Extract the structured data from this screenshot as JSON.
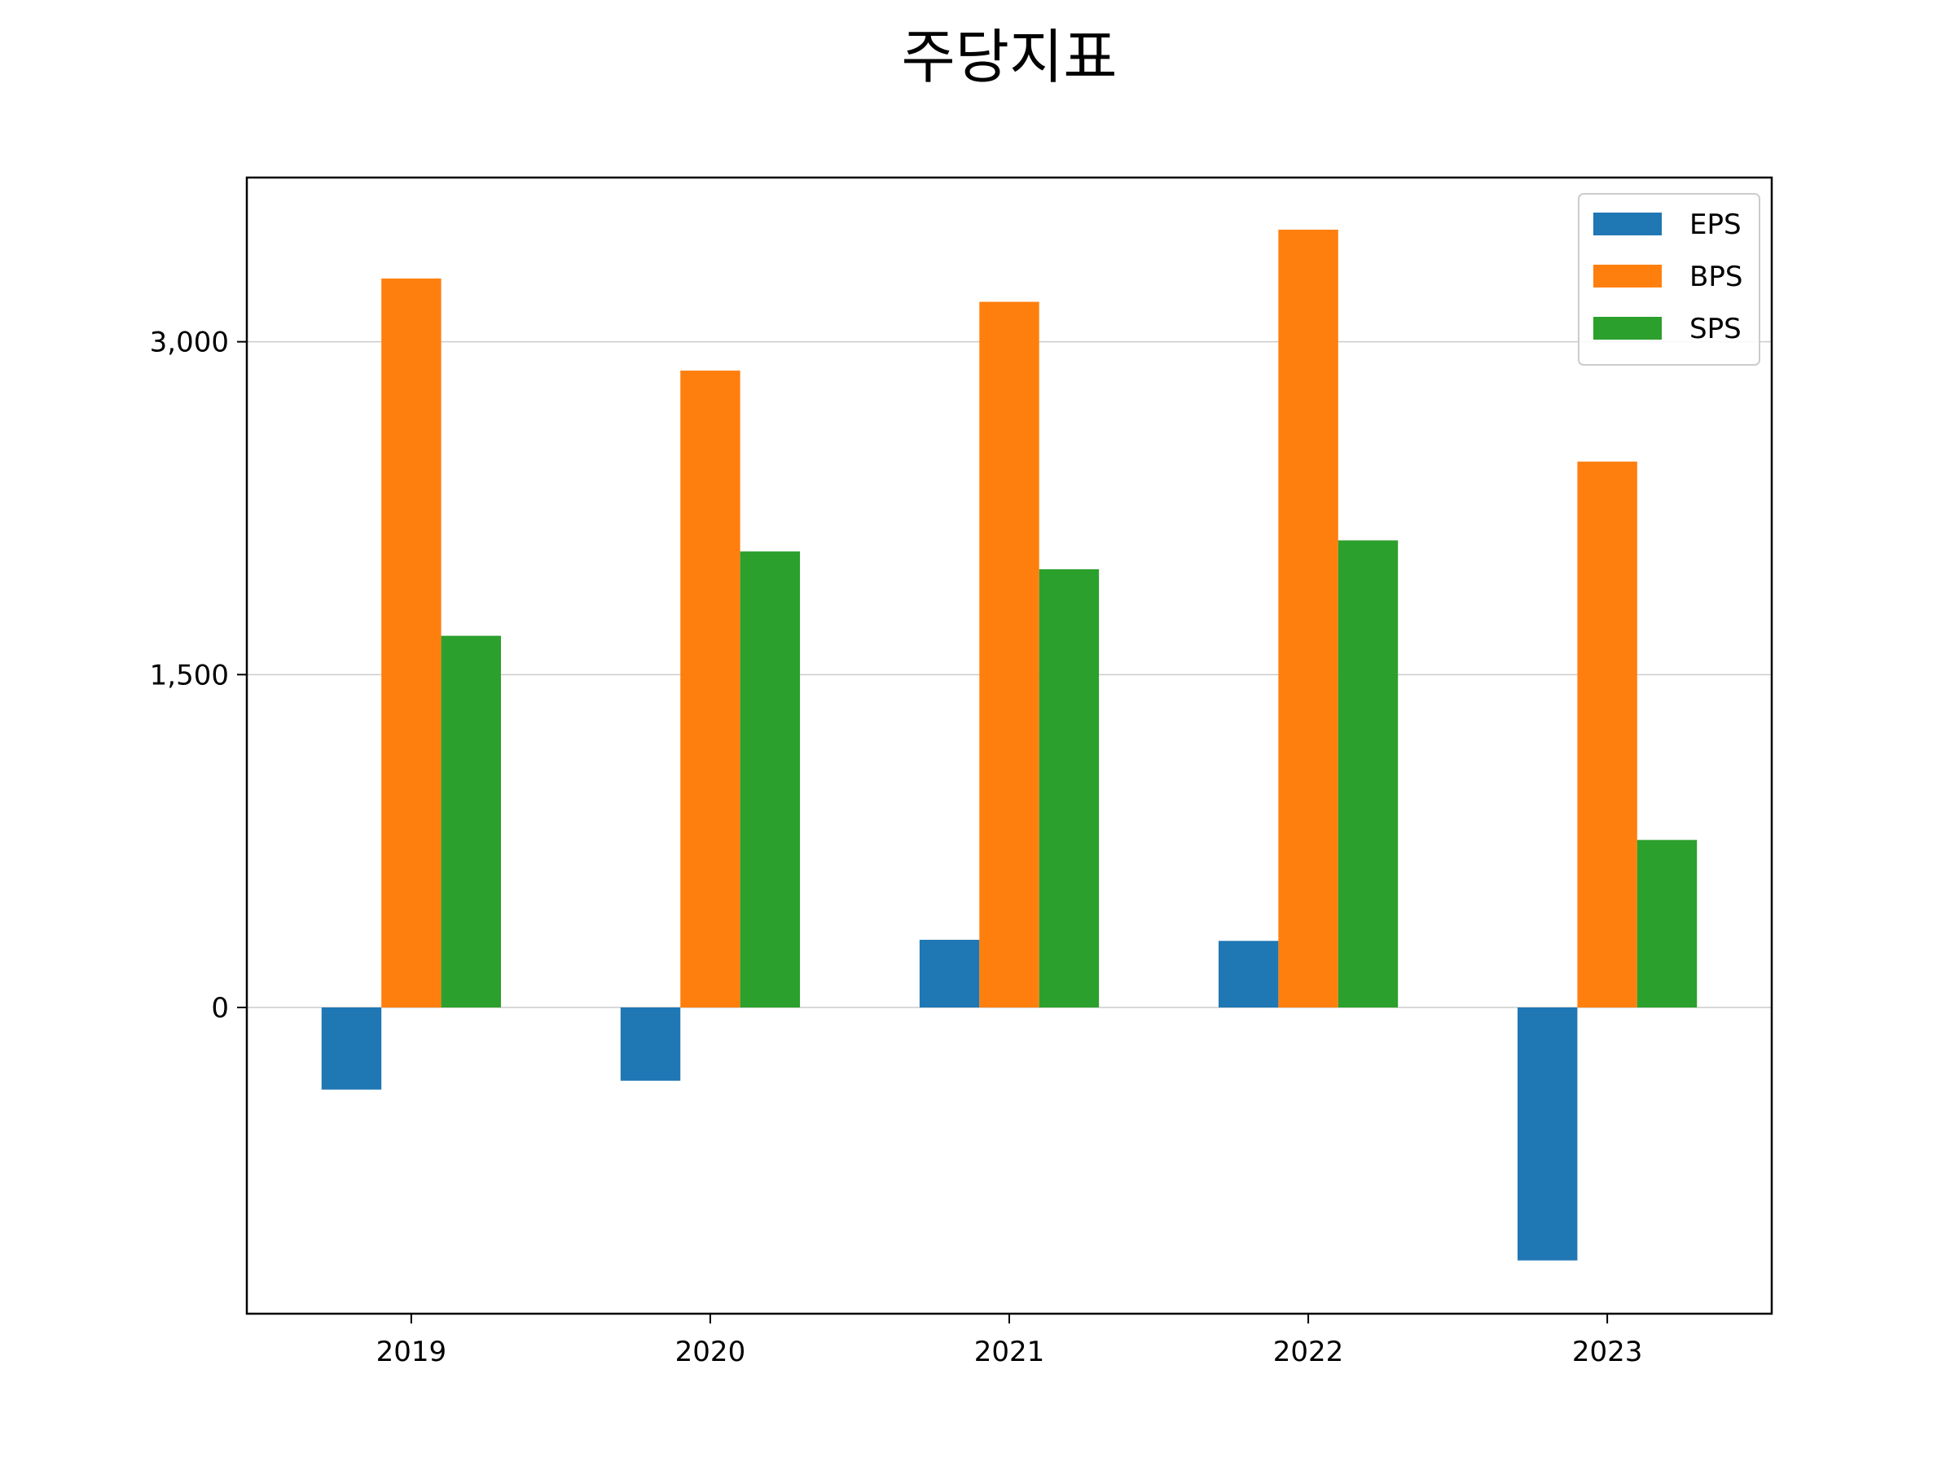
{
  "chart_data": {
    "type": "bar",
    "title": "주당지표",
    "categories": [
      "2019",
      "2020",
      "2021",
      "2022",
      "2023"
    ],
    "series": [
      {
        "name": "EPS",
        "color": "#1f77b4",
        "values": [
          -370,
          -330,
          305,
          300,
          -1140
        ]
      },
      {
        "name": "BPS",
        "color": "#ff7f0e",
        "values": [
          3285,
          2870,
          3180,
          3505,
          2460
        ]
      },
      {
        "name": "SPS",
        "color": "#2ca02c",
        "values": [
          1675,
          2055,
          1975,
          2105,
          755
        ]
      }
    ],
    "ylim": [
      -1380,
      3740
    ],
    "yticks": [
      0,
      1500,
      3000
    ],
    "ytick_labels": [
      "0",
      "1,500",
      "3,000"
    ],
    "grid": "y",
    "legend": "top-right",
    "xlabel": "",
    "ylabel": ""
  }
}
